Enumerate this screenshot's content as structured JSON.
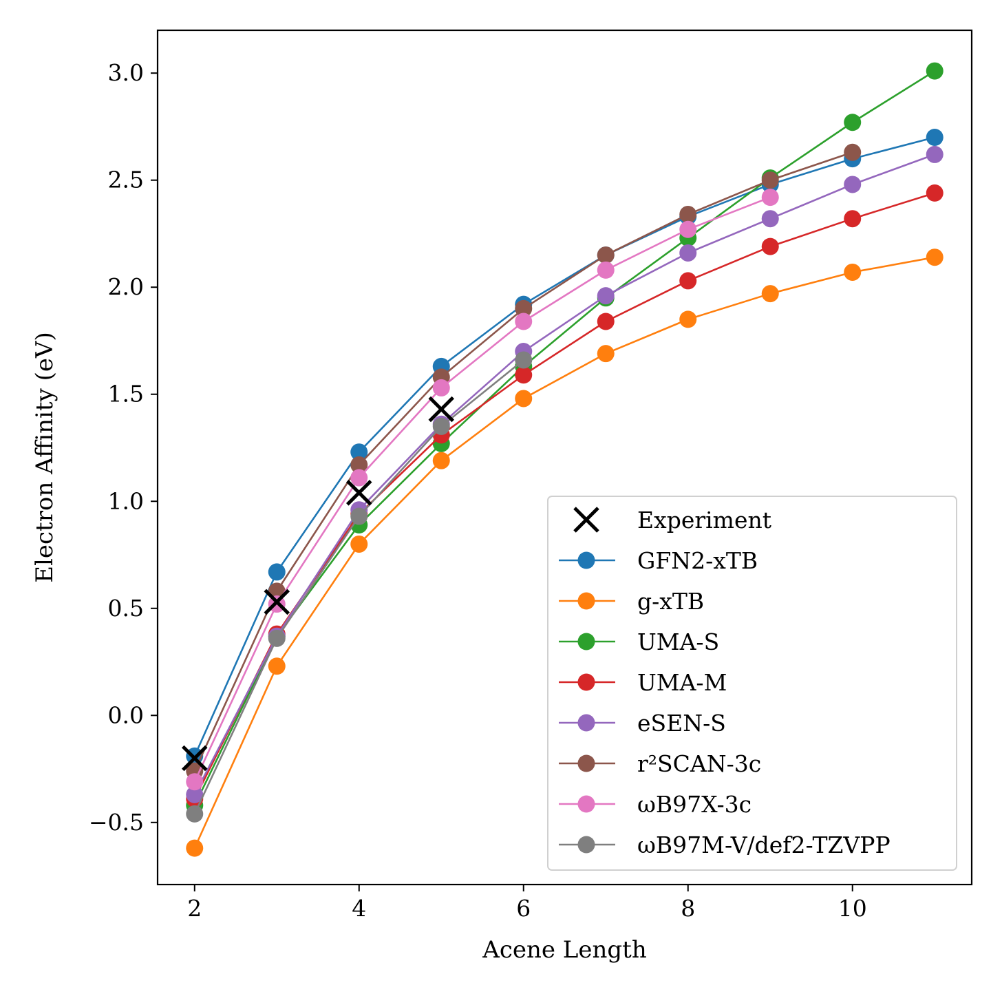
{
  "chart_data": {
    "type": "line",
    "title": "",
    "xlabel": "Acene Length",
    "ylabel": "Electron Affinity (eV)",
    "xlim": [
      1.55,
      11.45
    ],
    "ylim": [
      -0.79,
      3.2
    ],
    "xticks": [
      2,
      4,
      6,
      8,
      10
    ],
    "xtick_labels": [
      "2",
      "4",
      "6",
      "8",
      "10"
    ],
    "yticks": [
      -0.5,
      0.0,
      0.5,
      1.0,
      1.5,
      2.0,
      2.5,
      3.0
    ],
    "ytick_labels": [
      "−0.5",
      "0.0",
      "0.5",
      "1.0",
      "1.5",
      "2.0",
      "2.5",
      "3.0"
    ],
    "grid": false,
    "legend_position": "lower-right",
    "series": [
      {
        "name": "GFN2-xTB",
        "color": "#1f77b4",
        "marker": "circle",
        "x": [
          2,
          3,
          4,
          5,
          6,
          7,
          8,
          9,
          10,
          11
        ],
        "y": [
          -0.19,
          0.67,
          1.23,
          1.63,
          1.92,
          2.15,
          2.33,
          2.48,
          2.6,
          2.7
        ]
      },
      {
        "name": "g-xTB",
        "color": "#ff7f0e",
        "marker": "circle",
        "x": [
          2,
          3,
          4,
          5,
          6,
          7,
          8,
          9,
          10,
          11
        ],
        "y": [
          -0.62,
          0.23,
          0.8,
          1.19,
          1.48,
          1.69,
          1.85,
          1.97,
          2.07,
          2.14
        ]
      },
      {
        "name": "UMA-S",
        "color": "#2ca02c",
        "marker": "circle",
        "x": [
          2,
          3,
          4,
          5,
          6,
          7,
          8,
          9,
          10,
          11
        ],
        "y": [
          -0.42,
          0.37,
          0.89,
          1.27,
          1.63,
          1.95,
          2.23,
          2.51,
          2.77,
          3.01
        ]
      },
      {
        "name": "UMA-M",
        "color": "#d62728",
        "marker": "circle",
        "x": [
          2,
          3,
          4,
          5,
          6,
          7,
          8,
          9,
          10,
          11
        ],
        "y": [
          -0.39,
          0.38,
          0.94,
          1.31,
          1.59,
          1.84,
          2.03,
          2.19,
          2.32,
          2.44
        ]
      },
      {
        "name": "eSEN-S",
        "color": "#9467bd",
        "marker": "circle",
        "x": [
          2,
          3,
          4,
          5,
          6,
          7,
          8,
          9,
          10,
          11
        ],
        "y": [
          -0.37,
          0.37,
          0.96,
          1.36,
          1.7,
          1.96,
          2.16,
          2.32,
          2.48,
          2.62
        ]
      },
      {
        "name": "r²SCAN-3c",
        "color": "#8c564b",
        "marker": "circle",
        "x": [
          2,
          3,
          4,
          5,
          6,
          7,
          8,
          9,
          10
        ],
        "y": [
          -0.26,
          0.58,
          1.17,
          1.58,
          1.9,
          2.15,
          2.34,
          2.5,
          2.63
        ]
      },
      {
        "name": "ωB97X-3c",
        "color": "#e377c2",
        "marker": "circle",
        "x": [
          2,
          3,
          4,
          5,
          6,
          7,
          8,
          9
        ],
        "y": [
          -0.31,
          0.52,
          1.11,
          1.53,
          1.84,
          2.08,
          2.27,
          2.42
        ]
      },
      {
        "name": "ωB97M-V/def2-TZVPP",
        "color": "#7f7f7f",
        "marker": "circle",
        "x": [
          2,
          3,
          4,
          5,
          6
        ],
        "y": [
          -0.46,
          0.36,
          0.93,
          1.35,
          1.66
        ]
      }
    ],
    "experiment": {
      "name": "Experiment",
      "color": "#000000",
      "marker": "x",
      "x": [
        2,
        3,
        4,
        5
      ],
      "y": [
        -0.2,
        0.53,
        1.04,
        1.43
      ]
    }
  }
}
